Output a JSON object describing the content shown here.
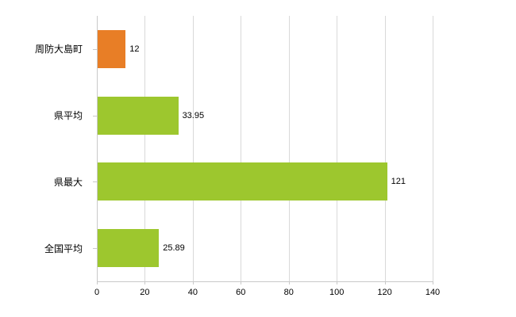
{
  "chart_data": {
    "type": "bar",
    "orientation": "horizontal",
    "title": "",
    "xlabel": "",
    "ylabel": "",
    "categories": [
      "周防大島町",
      "県平均",
      "県最大",
      "全国平均"
    ],
    "values": [
      12,
      33.95,
      121,
      25.89
    ],
    "value_labels": [
      "12",
      "33.95",
      "121",
      "25.89"
    ],
    "bar_colors": [
      "#e87e26",
      "#9dc72e",
      "#9dc72e",
      "#9dc72e"
    ],
    "xlim": [
      0,
      140
    ],
    "x_ticks": [
      0,
      20,
      40,
      60,
      80,
      100,
      120,
      140
    ],
    "grid": true,
    "legend": "none"
  },
  "colors": {
    "grid": "#d9d9d9",
    "axis": "#c9c9c9",
    "text": "#000000",
    "background": "#ffffff"
  }
}
